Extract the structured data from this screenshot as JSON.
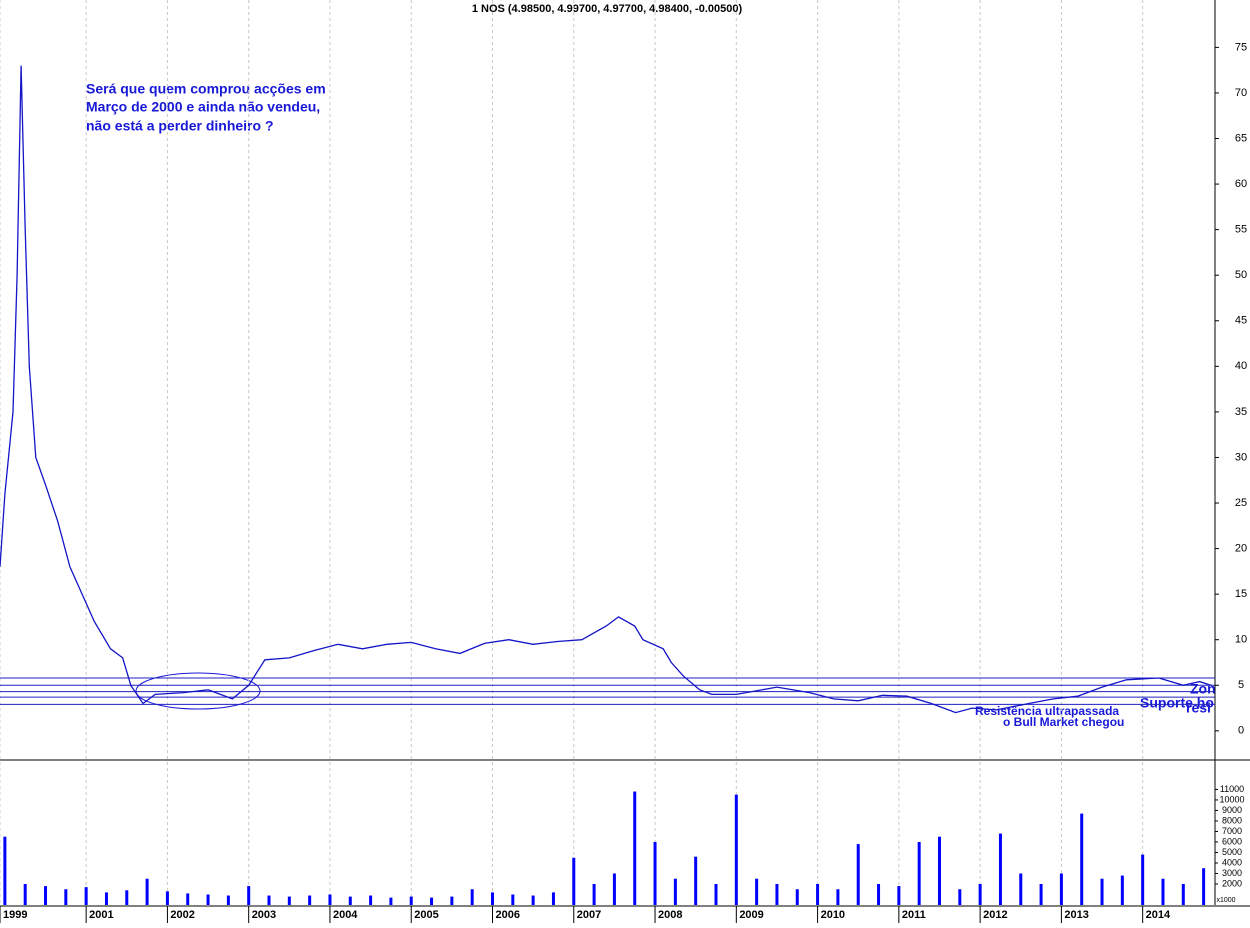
{
  "chart_data": [
    {
      "type": "line",
      "title": "1 NOS (4.98500, 4.99700, 4.97700, 4.98400, -0.00500)",
      "annotations": [
        "Será que quem comprou acções em",
        "Março de 2000 e ainda não vendeu,",
        "não está a perder dinheiro ?",
        "Resistência ultrapassada",
        "o Bull Market chegou",
        "Suporte ho",
        "Zon",
        "resi"
      ],
      "xlim": [
        1999.94,
        2014.89
      ],
      "xticks": [
        {
          "value": 1999.94,
          "label": "1999"
        },
        2001,
        2002,
        2003,
        2004,
        2005,
        2006,
        2007,
        2008,
        2009,
        2010,
        2011,
        2012,
        2013,
        2014
      ],
      "ylim": [
        -3.2,
        80.2
      ],
      "yticks": [
        0,
        5,
        10,
        15,
        20,
        25,
        30,
        35,
        40,
        45,
        50,
        55,
        60,
        65,
        70,
        75
      ],
      "grid": true,
      "hlines": [
        5.8,
        5.0,
        4.3,
        3.7,
        2.9
      ],
      "hline_color": "#2020c0",
      "series": [
        {
          "name": "NOS",
          "color": "#1414c8",
          "x": [
            1999.94,
            2000.0,
            2000.1,
            2000.15,
            2000.2,
            2000.25,
            2000.3,
            2000.38,
            2000.5,
            2000.65,
            2000.8,
            2000.95,
            2001.1,
            2001.3,
            2001.45,
            2001.55,
            2001.7,
            2001.85,
            2002.2,
            2002.5,
            2002.8,
            2003.0,
            2003.2,
            2003.5,
            2003.8,
            2004.1,
            2004.4,
            2004.7,
            2005.0,
            2005.3,
            2005.6,
            2005.9,
            2006.2,
            2006.5,
            2006.8,
            2007.1,
            2007.4,
            2007.55,
            2007.75,
            2007.85,
            2008.1,
            2008.2,
            2008.35,
            2008.55,
            2008.7,
            2009.0,
            2009.5,
            2009.9,
            2010.2,
            2010.5,
            2010.8,
            2011.1,
            2011.4,
            2011.7,
            2011.9,
            2012.2,
            2012.6,
            2012.9,
            2013.2,
            2013.5,
            2013.8,
            2014.2,
            2014.5,
            2014.7,
            2014.85
          ],
          "values": [
            18,
            26,
            35,
            50,
            73,
            55,
            40,
            30,
            27,
            23,
            18,
            15,
            12,
            9,
            8,
            5,
            3,
            4,
            4.2,
            4.5,
            3.5,
            5,
            7.8,
            8,
            8.8,
            9.5,
            9,
            9.5,
            9.7,
            9,
            8.5,
            9.6,
            10,
            9.5,
            9.8,
            10,
            11.5,
            12.5,
            11.5,
            10,
            9,
            7.5,
            6,
            4.5,
            4,
            4,
            4.8,
            4.2,
            3.5,
            3.3,
            3.9,
            3.8,
            3,
            2.0,
            2.5,
            2.3,
            3,
            3.5,
            3.8,
            4.8,
            5.6,
            5.8,
            5.0,
            5.4,
            4.98
          ]
        }
      ]
    },
    {
      "type": "bar",
      "unit_label": "x1000",
      "ylim": [
        0,
        12850
      ],
      "yticks": [
        {
          "value": 2000,
          "label": "2000"
        },
        3000,
        4000,
        5000,
        6000,
        7000,
        8000,
        9000,
        10000,
        11000
      ],
      "color": "#0000ff",
      "x": [
        2000.0,
        2000.25,
        2000.5,
        2000.75,
        2001.0,
        2001.25,
        2001.5,
        2001.75,
        2002.0,
        2002.25,
        2002.5,
        2002.75,
        2003.0,
        2003.25,
        2003.5,
        2003.75,
        2004.0,
        2004.25,
        2004.5,
        2004.75,
        2005.0,
        2005.25,
        2005.5,
        2005.75,
        2006.0,
        2006.25,
        2006.5,
        2006.75,
        2007.0,
        2007.25,
        2007.5,
        2007.75,
        2008.0,
        2008.25,
        2008.5,
        2008.75,
        2009.0,
        2009.25,
        2009.5,
        2009.75,
        2010.0,
        2010.25,
        2010.5,
        2010.75,
        2011.0,
        2011.25,
        2011.5,
        2011.75,
        2012.0,
        2012.25,
        2012.5,
        2012.75,
        2013.0,
        2013.25,
        2013.5,
        2013.75,
        2014.0,
        2014.25,
        2014.5,
        2014.75
      ],
      "values": [
        6500,
        2000,
        1800,
        1500,
        1700,
        1200,
        1400,
        2500,
        1300,
        1100,
        1000,
        900,
        1800,
        900,
        800,
        900,
        1000,
        800,
        900,
        700,
        800,
        700,
        800,
        1500,
        1200,
        1000,
        900,
        1200,
        4500,
        2000,
        3000,
        10800,
        6000,
        2500,
        4600,
        2000,
        10500,
        2500,
        2000,
        1500,
        2000,
        1500,
        5800,
        2000,
        1800,
        6000,
        6500,
        1500,
        2000,
        6800,
        3000,
        2000,
        3000,
        8700,
        2500,
        2800,
        4800,
        2500,
        2000,
        3500
      ]
    }
  ]
}
